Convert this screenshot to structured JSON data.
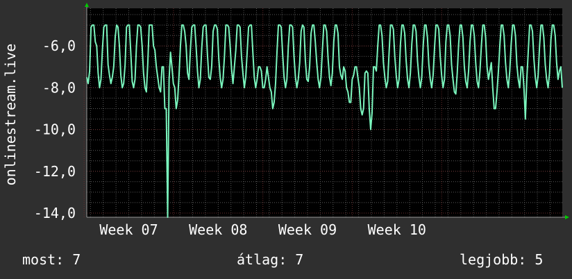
{
  "chart_data": {
    "type": "line",
    "ylabel": "onlinestream.live",
    "ylim": [
      -14.2,
      -4.2
    ],
    "y_ticks": [
      "-6,0",
      "-8,0",
      "-10,0",
      "-12,0",
      "-14,0"
    ],
    "y_tick_values": [
      -6,
      -8,
      -10,
      -12,
      -14
    ],
    "x_ticks": [
      "Week 07",
      "Week 08",
      "Week 09",
      "Week 10"
    ],
    "x_tick_positions": [
      7.0,
      8.0,
      9.0,
      10.0
    ],
    "xlim": [
      6.53,
      11.85
    ],
    "grid": true,
    "colors": {
      "background": "#2f2f2f",
      "plot": "#000000",
      "grid": "#5a5a5a",
      "major_grid": "#6a2c2c",
      "line": "#7af5bd",
      "axis": "#9a9a9a",
      "arrow": "#00cc00"
    },
    "series": [
      {
        "values": [
          -7.5,
          -7.8,
          -7.2,
          -5.1,
          -5.0,
          -5.0,
          -5.8,
          -6.0,
          -7.3,
          -8.0,
          -7.6,
          -6.2,
          -5.1,
          -5.0,
          -5.0,
          -6.9,
          -7.4,
          -7.8,
          -7.5,
          -7.0,
          -5.6,
          -5.0,
          -5.1,
          -6.0,
          -7.4,
          -8.0,
          -7.8,
          -6.9,
          -5.1,
          -5.0,
          -5.0,
          -6.3,
          -7.7,
          -8.0,
          -7.6,
          -6.0,
          -5.0,
          -5.0,
          -5.1,
          -6.0,
          -7.3,
          -8.0,
          -8.2,
          -6.8,
          -5.0,
          -5.0,
          -5.0,
          -6.0,
          -6.2,
          -7.0,
          -7.5,
          -8.0,
          -8.2,
          -7.0,
          -7.0,
          -9.0,
          -9.0,
          -14.2,
          -7.6,
          -6.3,
          -7.0,
          -7.8,
          -8.0,
          -9.0,
          -8.6,
          -7.4,
          -6.0,
          -5.0,
          -5.0,
          -5.3,
          -6.0,
          -7.3,
          -7.6,
          -6.2,
          -5.1,
          -5.0,
          -5.0,
          -6.0,
          -7.2,
          -8.0,
          -7.6,
          -6.1,
          -5.1,
          -5.0,
          -5.0,
          -6.4,
          -7.5,
          -7.6,
          -7.0,
          -5.3,
          -5.0,
          -5.0,
          -5.2,
          -6.6,
          -7.5,
          -8.0,
          -7.6,
          -6.5,
          -5.0,
          -5.0,
          -5.1,
          -6.0,
          -7.1,
          -7.8,
          -7.0,
          -6.2,
          -5.0,
          -5.0,
          -5.1,
          -6.5,
          -7.3,
          -8.0,
          -7.5,
          -6.3,
          -5.1,
          -5.0,
          -5.0,
          -6.3,
          -7.5,
          -8.0,
          -7.6,
          -7.0,
          -7.0,
          -7.2,
          -8.0,
          -8.0,
          -7.6,
          -7.0,
          -7.5,
          -8.0,
          -8.2,
          -9.0,
          -8.7,
          -7.8,
          -6.3,
          -5.0,
          -5.0,
          -5.1,
          -6.4,
          -7.5,
          -8.0,
          -7.6,
          -6.0,
          -5.0,
          -5.0,
          -5.1,
          -6.5,
          -7.5,
          -8.0,
          -7.6,
          -6.8,
          -5.3,
          -5.0,
          -5.1,
          -6.7,
          -7.6,
          -7.7,
          -7.0,
          -5.4,
          -5.0,
          -5.0,
          -5.8,
          -6.8,
          -7.6,
          -8.0,
          -7.5,
          -6.2,
          -5.0,
          -5.0,
          -5.3,
          -6.6,
          -7.5,
          -7.9,
          -7.3,
          -5.8,
          -5.0,
          -5.0,
          -5.4,
          -7.0,
          -7.4,
          -7.6,
          -7.0,
          -7.2,
          -8.0,
          -8.2,
          -8.7,
          -8.7,
          -7.6,
          -7.4,
          -7.0,
          -7.0,
          -7.5,
          -8.0,
          -9.0,
          -9.3,
          -9.0,
          -7.3,
          -7.2,
          -7.3,
          -9.0,
          -10.0,
          -9.2,
          -7.0,
          -7.0,
          -7.2,
          -6.0,
          -5.0,
          -5.0,
          -5.5,
          -6.8,
          -7.5,
          -8.0,
          -7.7,
          -6.3,
          -5.0,
          -5.0,
          -5.2,
          -6.5,
          -7.4,
          -8.0,
          -7.6,
          -5.9,
          -5.0,
          -5.0,
          -5.4,
          -6.7,
          -7.6,
          -8.0,
          -7.3,
          -5.9,
          -5.0,
          -5.0,
          -5.3,
          -6.7,
          -7.5,
          -8.0,
          -7.5,
          -6.0,
          -5.0,
          -5.0,
          -5.6,
          -6.9,
          -7.6,
          -8.0,
          -7.4,
          -6.1,
          -5.0,
          -5.0,
          -5.2,
          -6.5,
          -7.4,
          -8.0,
          -7.6,
          -5.8,
          -5.0,
          -5.0,
          -5.5,
          -6.9,
          -7.6,
          -8.2,
          -8.3,
          -7.3,
          -5.9,
          -5.0,
          -5.0,
          -5.6,
          -7.0,
          -7.7,
          -8.0,
          -7.2,
          -5.8,
          -5.0,
          -5.0,
          -5.5,
          -6.8,
          -7.7,
          -8.0,
          -7.2,
          -6.0,
          -5.0,
          -5.0,
          -5.6,
          -7.0,
          -7.6,
          -7.2,
          -6.8,
          -8.0,
          -9.0,
          -9.0,
          -8.2,
          -7.2,
          -6.0,
          -5.0,
          -5.0,
          -5.5,
          -6.8,
          -7.6,
          -8.0,
          -7.2,
          -5.9,
          -5.0,
          -5.0,
          -5.5,
          -6.9,
          -7.6,
          -8.0,
          -7.0,
          -7.0,
          -8.0,
          -9.5,
          -7.6,
          -6.3,
          -5.0,
          -5.0,
          -5.3,
          -6.6,
          -7.5,
          -8.0,
          -7.4,
          -6.0,
          -5.0,
          -5.0,
          -5.6,
          -6.9,
          -7.6,
          -8.0,
          -7.3,
          -5.7,
          -5.0,
          -5.0,
          -5.5,
          -6.8,
          -7.6,
          -7.2,
          -7.0,
          -8.0
        ]
      }
    ]
  },
  "footer": {
    "current": "most: 7",
    "average": "átlag: 7",
    "best": "legjobb: 5"
  }
}
